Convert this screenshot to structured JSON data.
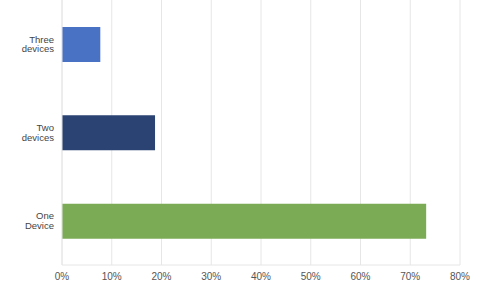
{
  "chart_data": {
    "type": "bar",
    "orientation": "horizontal",
    "categories": [
      "Three devices",
      "Two devices",
      "One Device"
    ],
    "values": [
      7.7,
      18.7,
      73.2
    ],
    "colors": [
      "#4a72c4",
      "#2b4373",
      "#7cab56"
    ],
    "xlim": [
      0,
      80
    ],
    "xticks": [
      {
        "value": 0,
        "label": "0%"
      },
      {
        "value": 10,
        "label": "10%"
      },
      {
        "value": 20,
        "label": "20%"
      },
      {
        "value": 30,
        "label": "30%"
      },
      {
        "value": 40,
        "label": "40%"
      },
      {
        "value": 50,
        "label": "50%"
      },
      {
        "value": 60,
        "label": "60%"
      },
      {
        "value": 70,
        "label": "70%"
      },
      {
        "value": 80,
        "label": "80%"
      }
    ],
    "grid": true
  }
}
